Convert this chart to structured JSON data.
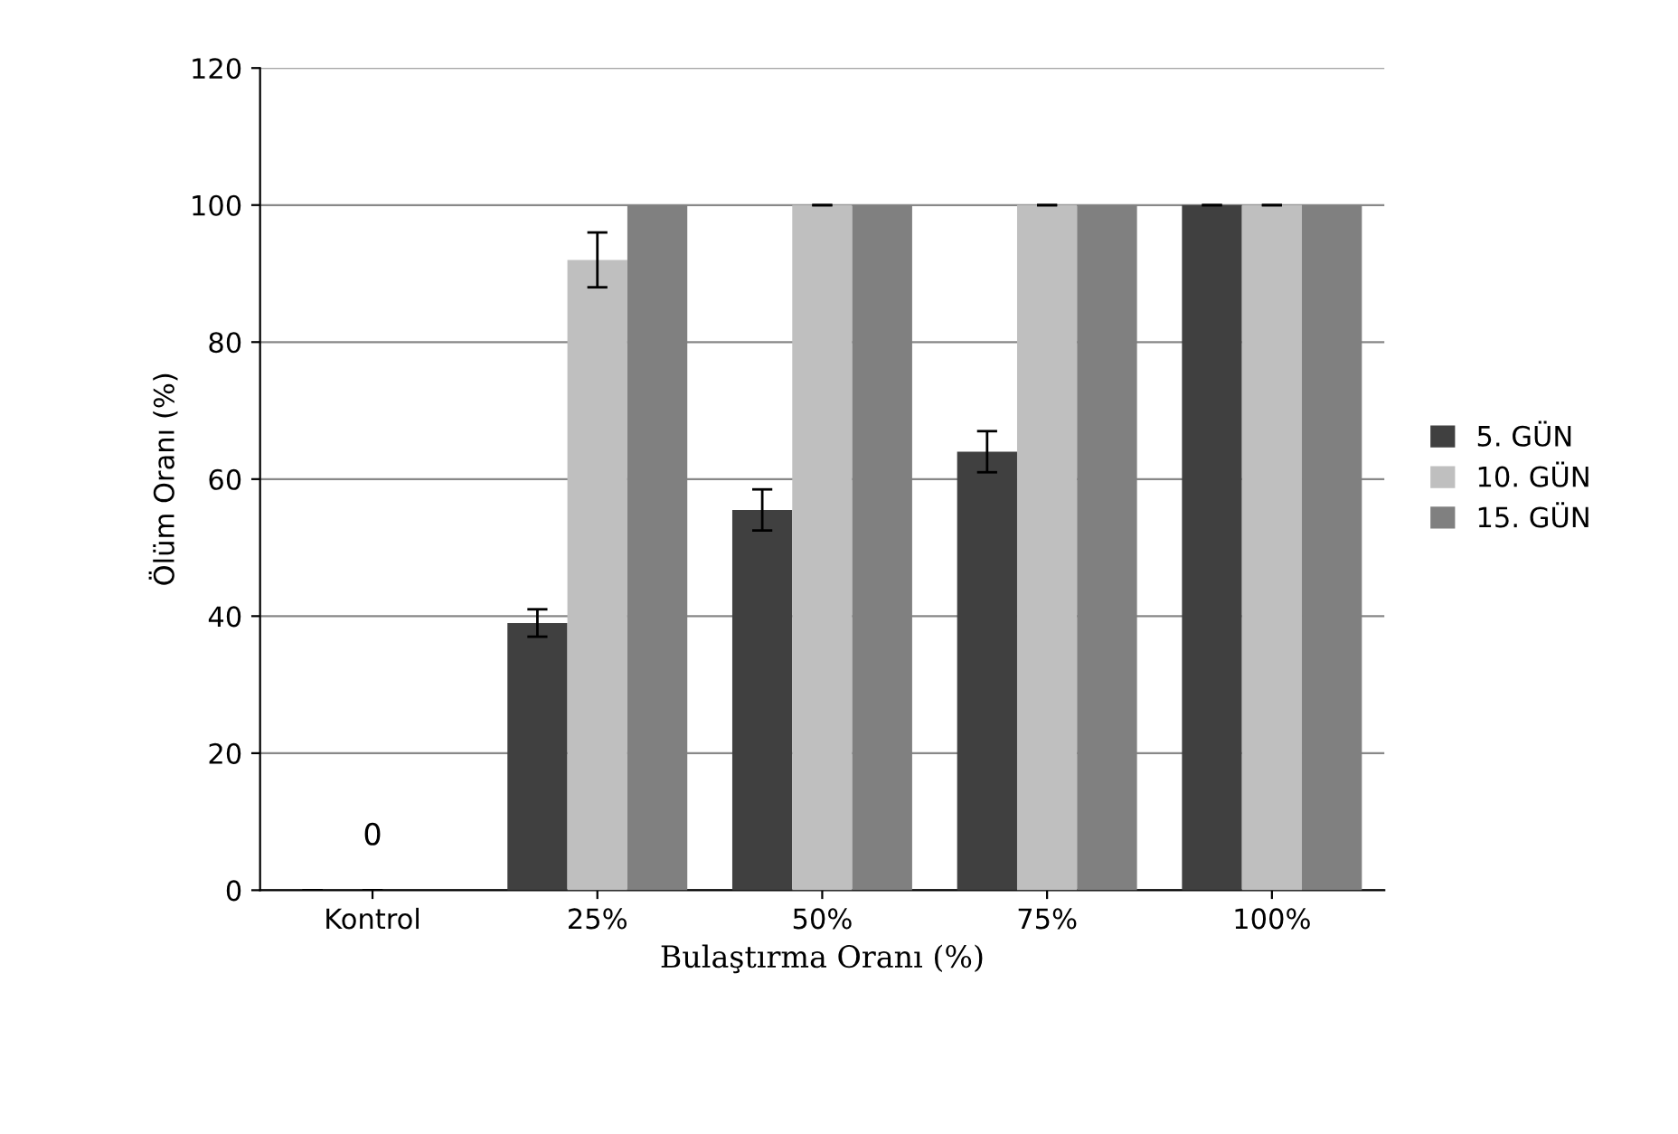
{
  "chart_data": {
    "type": "bar",
    "xlabel": "Bulaştırma Oranı (%)",
    "ylabel": "Ölüm Oranı (%)",
    "categories": [
      "Kontrol",
      "25%",
      "50%",
      "75%",
      "100%"
    ],
    "series": [
      {
        "name": "5. GÜN",
        "color": "#404040",
        "values": [
          0,
          39,
          55.5,
          64,
          100
        ],
        "errors": [
          null,
          2,
          3,
          3,
          null
        ]
      },
      {
        "name": "10. GÜN",
        "color": "#bfbfbf",
        "values": [
          0,
          92,
          100,
          100,
          100
        ],
        "errors": [
          null,
          4,
          null,
          null,
          null
        ]
      },
      {
        "name": "15. GÜN",
        "color": "#808080",
        "values": [
          0,
          100,
          100,
          100,
          100
        ]
      }
    ],
    "annotations": [
      {
        "text": "0",
        "x": "Kontrol",
        "y": 0
      }
    ],
    "ylim": [
      0,
      120
    ],
    "yticks": [
      0,
      20,
      40,
      60,
      80,
      100,
      120
    ],
    "grid": "y",
    "legend": "right"
  }
}
